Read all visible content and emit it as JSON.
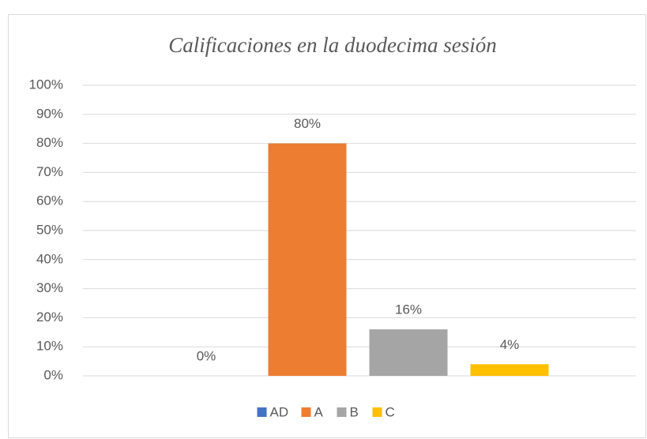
{
  "chart_data": {
    "type": "bar",
    "title": "Calificaciones en la duodecima sesión",
    "categories": [
      null
    ],
    "series": [
      {
        "name": "AD",
        "color": "#4472c4",
        "values": [
          0
        ],
        "value_labels": [
          "0%"
        ]
      },
      {
        "name": "A",
        "color": "#ed7d31",
        "values": [
          80
        ],
        "value_labels": [
          "80%"
        ]
      },
      {
        "name": "B",
        "color": "#a5a5a5",
        "values": [
          16
        ],
        "value_labels": [
          "16%"
        ]
      },
      {
        "name": "C",
        "color": "#ffc000",
        "values": [
          4
        ],
        "value_labels": [
          "4%"
        ]
      }
    ],
    "ylim": [
      0,
      100
    ],
    "yticks": [
      {
        "value": 0,
        "label": "0%"
      },
      {
        "value": 10,
        "label": "10%"
      },
      {
        "value": 20,
        "label": "20%"
      },
      {
        "value": 30,
        "label": "30%"
      },
      {
        "value": 40,
        "label": "40%"
      },
      {
        "value": 50,
        "label": "50%"
      },
      {
        "value": 60,
        "label": "60%"
      },
      {
        "value": 70,
        "label": "70%"
      },
      {
        "value": 80,
        "label": "80%"
      },
      {
        "value": 90,
        "label": "90%"
      },
      {
        "value": 100,
        "label": "100%"
      }
    ],
    "grid": true,
    "legend": "bottom"
  }
}
